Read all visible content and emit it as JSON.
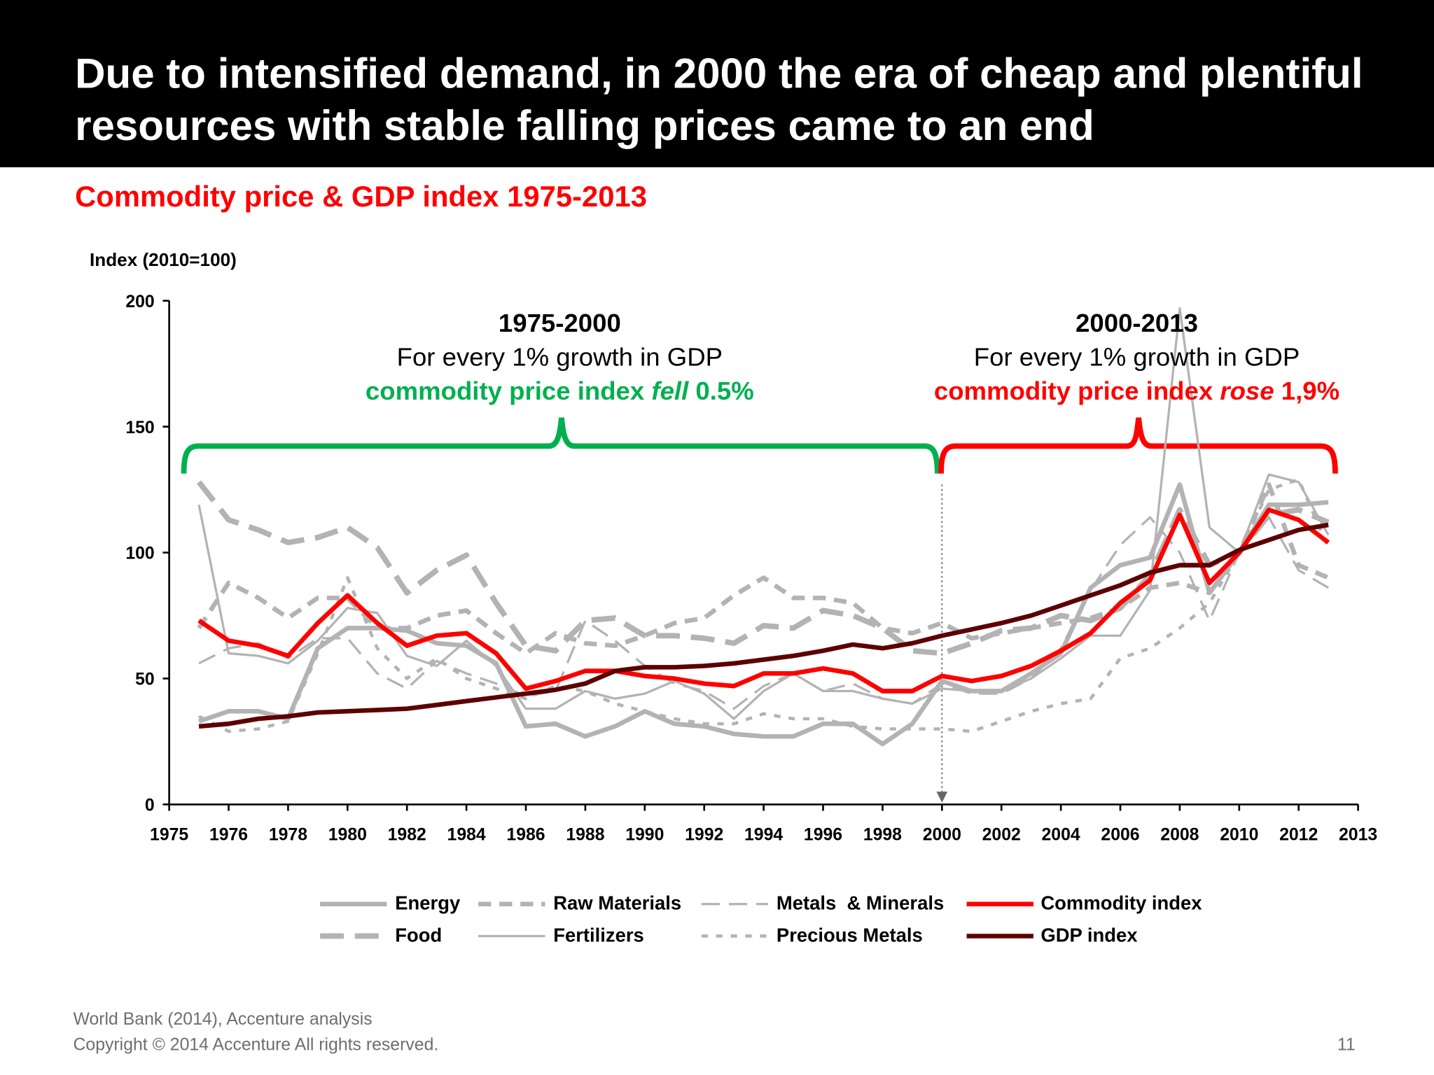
{
  "header": {
    "title": "Due to intensified demand, in 2000 the era of cheap and plentiful resources with stable falling prices came to an end"
  },
  "subtitle": "Commodity price & GDP index 1975-2013",
  "annotations": {
    "left": {
      "period": "1975-2000",
      "line1": "For every 1% growth in GDP",
      "pre": "commodity price index ",
      "verb": "fell",
      "post": " 0.5%",
      "color": "#00b050"
    },
    "right": {
      "period": "2000-2013",
      "line1": "For every 1% growth in GDP",
      "pre": "commodity price index ",
      "verb": "rose",
      "post": " 1,9%",
      "color": "#ff0000"
    }
  },
  "footer": {
    "source": "World Bank (2014), Accenture analysis",
    "copyright": "Copyright © 2014 Accenture All rights reserved.",
    "page": "11"
  },
  "chart_data": {
    "type": "line",
    "ylabel": "Index (2010=100)",
    "ylim": [
      0,
      200
    ],
    "yticks": [
      0,
      50,
      100,
      150,
      200
    ],
    "xtick_labels": [
      "1975",
      "1976",
      "1978",
      "1980",
      "1982",
      "1984",
      "1986",
      "1988",
      "1990",
      "1992",
      "1994",
      "1996",
      "1998",
      "2000",
      "2002",
      "2004",
      "2006",
      "2008",
      "2010",
      "2012",
      "2013"
    ],
    "x": [
      1975,
      1976,
      1977,
      1978,
      1979,
      1980,
      1981,
      1982,
      1983,
      1984,
      1985,
      1986,
      1987,
      1988,
      1989,
      1990,
      1991,
      1992,
      1993,
      1994,
      1995,
      1996,
      1997,
      1998,
      1999,
      2000,
      2001,
      2002,
      2003,
      2004,
      2005,
      2006,
      2007,
      2008,
      2009,
      2010,
      2011,
      2012,
      2013
    ],
    "grid": false,
    "legend_position": "bottom",
    "marker_year": 2000,
    "series": [
      {
        "name": "Energy",
        "color": "#b3b3b3",
        "style": "solid-thick",
        "values": [
          33,
          37,
          37,
          34,
          62,
          70,
          70,
          69,
          64,
          63,
          56,
          31,
          32,
          27,
          31,
          37,
          32,
          31,
          28,
          27,
          27,
          32,
          32,
          24,
          32,
          49,
          45,
          45,
          52,
          60,
          86,
          95,
          98,
          127,
          84,
          100,
          119,
          119,
          120
        ]
      },
      {
        "name": "Food",
        "color": "#b3b3b3",
        "style": "longdash-thick",
        "values": [
          128,
          113,
          109,
          104,
          106,
          110,
          102,
          84,
          93,
          99,
          80,
          63,
          61,
          73,
          74,
          67,
          67,
          66,
          64,
          71,
          70,
          77,
          75,
          70,
          61,
          60,
          64,
          69,
          70,
          75,
          73,
          78,
          91,
          117,
          95,
          100,
          115,
          117,
          112
        ]
      },
      {
        "name": "Raw Materials",
        "color": "#b3b3b3",
        "style": "dash-thick",
        "values": [
          70,
          88,
          82,
          74,
          82,
          82,
          70,
          70,
          75,
          77,
          68,
          60,
          68,
          64,
          63,
          67,
          72,
          74,
          83,
          90,
          82,
          82,
          80,
          70,
          68,
          72,
          66,
          68,
          70,
          72,
          74,
          78,
          86,
          88,
          84,
          100,
          127,
          95,
          90
        ]
      },
      {
        "name": "Fertilizers",
        "color": "#b3b3b3",
        "style": "solid-thin",
        "values": [
          119,
          60,
          59,
          56,
          65,
          78,
          76,
          59,
          55,
          65,
          55,
          38,
          38,
          45,
          42,
          44,
          49,
          44,
          34,
          45,
          52,
          45,
          45,
          42,
          40,
          46,
          45,
          45,
          50,
          58,
          67,
          67,
          85,
          197,
          110,
          100,
          131,
          128,
          107
        ]
      },
      {
        "name": "Metals  & Minerals",
        "color": "#b3b3b3",
        "style": "longdash-thin",
        "values": [
          56,
          62,
          64,
          58,
          66,
          66,
          52,
          46,
          57,
          52,
          48,
          43,
          45,
          73,
          65,
          55,
          48,
          45,
          38,
          47,
          52,
          45,
          48,
          42,
          40,
          48,
          44,
          44,
          50,
          62,
          85,
          103,
          114,
          100,
          73,
          100,
          114,
          93,
          86
        ]
      },
      {
        "name": "Precious Metals",
        "color": "#b3b3b3",
        "style": "shortdash",
        "values": [
          35,
          29,
          30,
          33,
          60,
          90,
          62,
          50,
          58,
          50,
          46,
          42,
          47,
          45,
          40,
          37,
          34,
          32,
          32,
          36,
          34,
          34,
          31,
          30,
          30,
          30,
          29,
          33,
          37,
          40,
          42,
          58,
          62,
          70,
          80,
          100,
          125,
          129,
          102
        ]
      },
      {
        "name": "Commodity index",
        "color": "#ff0000",
        "style": "solid-bold",
        "values": [
          73,
          65,
          63,
          59,
          72,
          83,
          72,
          63,
          67,
          68,
          60,
          46,
          49,
          53,
          53,
          51,
          50,
          48,
          47,
          52,
          52,
          54,
          52,
          45,
          45,
          51,
          49,
          51,
          55,
          61,
          68,
          80,
          89,
          115,
          88,
          100,
          117,
          113,
          104
        ]
      },
      {
        "name": "GDP index",
        "color": "#5c0000",
        "style": "solid-bold",
        "values": [
          31,
          32,
          34,
          35,
          36.5,
          37,
          37.5,
          38,
          39.5,
          41,
          42.5,
          44,
          45.5,
          48,
          53,
          54.5,
          54.5,
          55,
          56,
          57.5,
          59,
          61,
          63.5,
          62,
          64,
          67,
          69.5,
          72,
          75,
          79,
          83,
          87,
          92,
          95,
          95,
          101,
          105,
          109,
          111
        ]
      }
    ]
  }
}
